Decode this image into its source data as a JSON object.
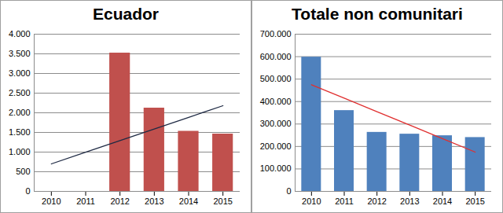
{
  "chart_data": [
    {
      "type": "bar",
      "title": "Ecuador",
      "categories": [
        "2010",
        "2011",
        "2012",
        "2013",
        "2014",
        "2015"
      ],
      "series": [
        {
          "type": "bar",
          "color": "#c0504d",
          "values": [
            null,
            null,
            3520,
            2120,
            1530,
            1460
          ]
        },
        {
          "type": "line",
          "color": "#1f2a44",
          "values": [
            700,
            996,
            1292,
            1588,
            1884,
            2180
          ]
        }
      ],
      "ylim": [
        0,
        4000
      ],
      "yticks": [
        0,
        500,
        {
          "value": 1000,
          "label": "1.000"
        },
        {
          "value": 1500,
          "label": "1.500"
        },
        {
          "value": 2000,
          "label": "2.000"
        },
        {
          "value": 2500,
          "label": "2.500"
        },
        {
          "value": 3000,
          "label": "3.000"
        },
        {
          "value": 3500,
          "label": "3.500"
        },
        {
          "value": 4000,
          "label": "4.000"
        }
      ],
      "grid": true
    },
    {
      "type": "bar",
      "title": "Totale non comunitari",
      "categories": [
        "2010",
        "2011",
        "2012",
        "2013",
        "2014",
        "2015"
      ],
      "series": [
        {
          "type": "bar",
          "color": "#4f81bd",
          "values": [
            598000,
            360000,
            263000,
            255000,
            248000,
            240000
          ]
        },
        {
          "type": "line",
          "color": "#e03030",
          "values": [
            475000,
            415000,
            355000,
            295000,
            235000,
            175000
          ]
        }
      ],
      "ylim": [
        0,
        700000
      ],
      "yticks": [
        0,
        {
          "value": 100000,
          "label": "100.000"
        },
        {
          "value": 200000,
          "label": "200.000"
        },
        {
          "value": 300000,
          "label": "300.000"
        },
        {
          "value": 400000,
          "label": "400.000"
        },
        {
          "value": 500000,
          "label": "500.000"
        },
        {
          "value": 600000,
          "label": "600.000"
        },
        {
          "value": 700000,
          "label": "700.000"
        }
      ],
      "grid": true
    }
  ]
}
